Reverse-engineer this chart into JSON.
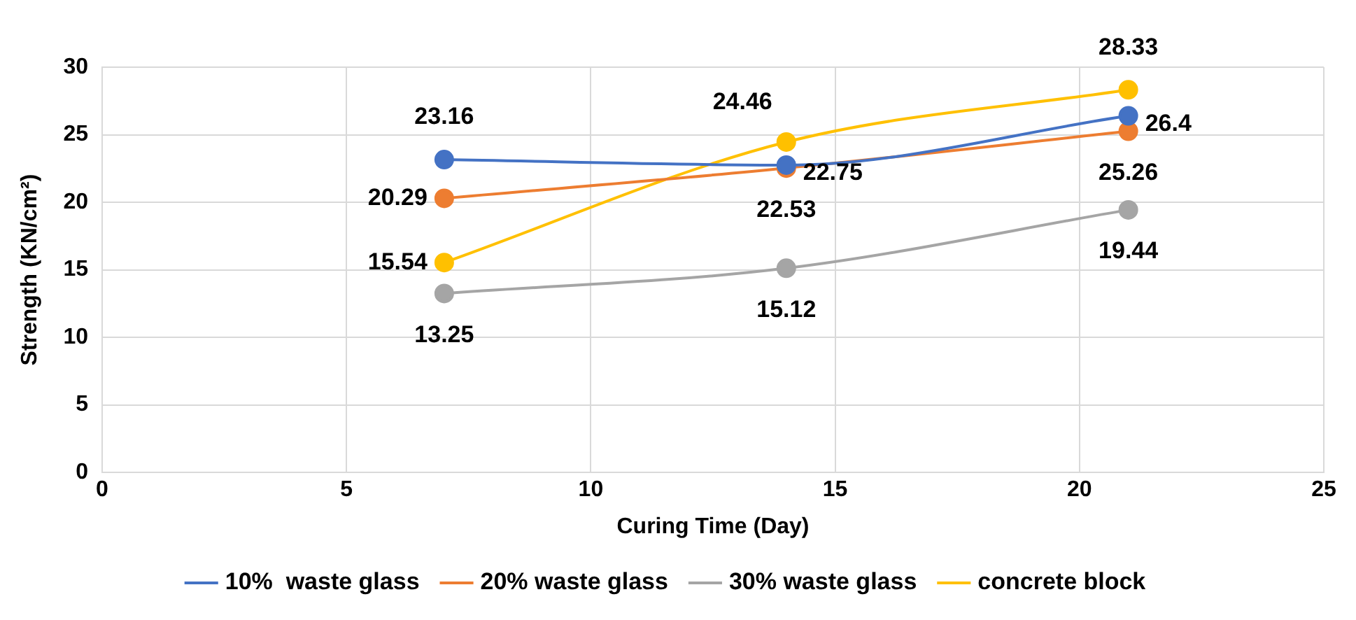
{
  "chart_data": {
    "type": "line",
    "xlabel": "Curing Time (Day)",
    "ylabel": "Strength (KN/cm²)",
    "x": [
      7,
      14,
      21
    ],
    "series": [
      {
        "name": "10%  waste glass",
        "color": "#4472c4",
        "values": [
          23.16,
          22.75,
          26.4
        ]
      },
      {
        "name": "20% waste glass",
        "color": "#ed7d31",
        "values": [
          20.29,
          22.53,
          25.26
        ]
      },
      {
        "name": "30% waste glass",
        "color": "#a5a5a5",
        "values": [
          13.25,
          15.12,
          19.44
        ]
      },
      {
        "name": "concrete block",
        "color": "#ffc000",
        "values": [
          15.54,
          24.46,
          28.33
        ]
      }
    ],
    "xlim": [
      0,
      25
    ],
    "xticks": [
      0,
      5,
      10,
      15,
      20,
      25
    ],
    "ylim": [
      0,
      30
    ],
    "yticks": [
      0,
      5,
      10,
      15,
      20,
      25,
      30
    ],
    "grid": true,
    "legend": "bottom",
    "marker": "circle",
    "line_style": "solid",
    "data_labels": true
  }
}
